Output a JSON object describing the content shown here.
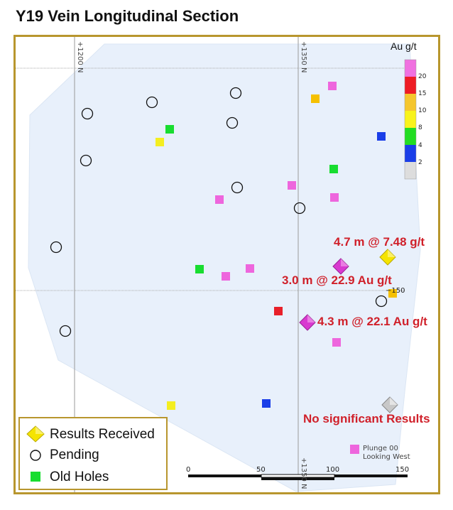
{
  "title": "Y19 Vein Longitudinal Section",
  "grid_labels": {
    "v1": "+1200 N",
    "v2": "+1350 N",
    "v2_bottom": "+1350 N",
    "h_tick": "−150"
  },
  "colorbar": {
    "title": "Au g/t",
    "ticks": [
      "20",
      "15",
      "10",
      "8",
      "4",
      "2"
    ],
    "colors": [
      "#f070e0",
      "#ee1c24",
      "#f5c62d",
      "#f8f31b",
      "#22dd22",
      "#1a3ee8",
      "#dddddd"
    ]
  },
  "results": [
    {
      "label": "4.7 m @ 7.48 g/t",
      "color": "#f5e400"
    },
    {
      "label": "3.0 m @ 22.9 Au g/t",
      "color": "#d83ad0"
    },
    {
      "label": "4.3 m @ 22.1 Au g/t",
      "color": "#d83ad0"
    },
    {
      "label": "No significant  Results",
      "color": "#c8c8c8"
    }
  ],
  "legend": {
    "results_received": "Results Received",
    "pending": "Pending",
    "old_holes": "Old Holes"
  },
  "plunge": {
    "line1": "Plunge 00",
    "line2": "Looking West"
  },
  "scale": {
    "labels": [
      "0",
      "50",
      "100",
      "150"
    ]
  },
  "symbol_colors": {
    "magenta": "#ee66dd",
    "red": "#e8202a",
    "orange": "#f5c000",
    "yellow": "#f4ee20",
    "green": "#18dd30",
    "blue": "#1a3ee8",
    "zone_fill": "#e8f0fb",
    "frame": "#b8962e"
  }
}
